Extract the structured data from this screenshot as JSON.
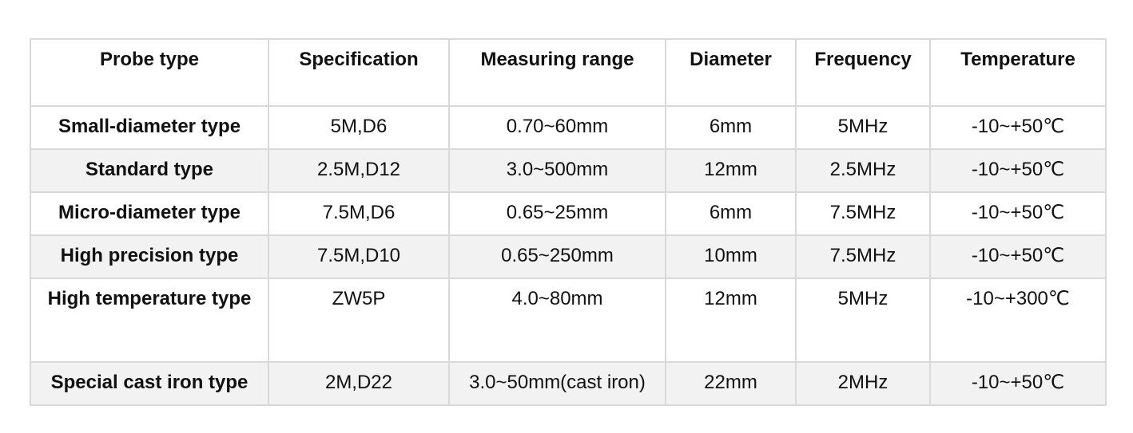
{
  "table": {
    "headers": [
      "Probe type",
      "Specification",
      "Measuring range",
      "Diameter",
      "Frequency",
      "Temperature"
    ],
    "rows": [
      [
        "Small-diameter type",
        "5M,D6",
        "0.70~60mm",
        "6mm",
        "5MHz",
        "-10~+50℃"
      ],
      [
        "Standard type",
        "2.5M,D12",
        "3.0~500mm",
        "12mm",
        "2.5MHz",
        "-10~+50℃"
      ],
      [
        "Micro-diameter type",
        "7.5M,D6",
        "0.65~25mm",
        "6mm",
        "7.5MHz",
        "-10~+50℃"
      ],
      [
        "High precision type",
        "7.5M,D10",
        "0.65~250mm",
        "10mm",
        "7.5MHz",
        "-10~+50℃"
      ],
      [
        "High temperature type",
        "ZW5P",
        "4.0~80mm",
        "12mm",
        "5MHz",
        "-10~+300℃"
      ],
      [
        "Special cast iron type",
        "2M,D22",
        "3.0~50mm(cast iron)",
        "22mm",
        "2MHz",
        "-10~+50℃"
      ]
    ]
  }
}
